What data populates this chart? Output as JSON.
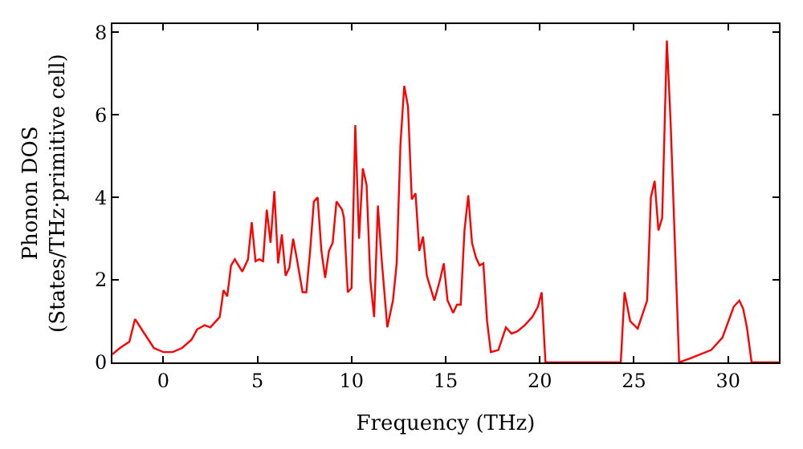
{
  "chart_data": {
    "type": "line",
    "xlabel": "Frequency (THz)",
    "ylabel": "Phonon DOS\n(States/THz·primitive cell)",
    "x": [
      -2.7,
      -2.3,
      -1.8,
      -1.5,
      -1.0,
      -0.5,
      0,
      0.5,
      1,
      1.5,
      1.8,
      2.2,
      2.5,
      3,
      3.2,
      3.4,
      3.6,
      3.8,
      4.2,
      4.5,
      4.7,
      4.9,
      5.1,
      5.3,
      5.5,
      5.7,
      5.9,
      6.1,
      6.3,
      6.5,
      6.7,
      6.9,
      7.1,
      7.4,
      7.6,
      7.8,
      8.0,
      8.2,
      8.4,
      8.6,
      8.8,
      9.0,
      9.2,
      9.5,
      9.6,
      9.8,
      10.0,
      10.2,
      10.4,
      10.6,
      10.8,
      11.0,
      11.2,
      11.4,
      11.6,
      11.9,
      12.2,
      12.4,
      12.6,
      12.8,
      13.0,
      13.2,
      13.4,
      13.6,
      13.8,
      14.0,
      14.2,
      14.4,
      14.7,
      14.9,
      15.1,
      15.4,
      15.6,
      15.8,
      16.0,
      16.2,
      16.4,
      16.6,
      16.8,
      17.0,
      17.2,
      17.4,
      17.8,
      18.2,
      18.5,
      18.8,
      19.2,
      19.6,
      19.9,
      20.1,
      20.3,
      24.3,
      24.5,
      24.8,
      25.2,
      25.7,
      25.9,
      26.1,
      26.3,
      26.5,
      26.75,
      26.95,
      27.4,
      28.0,
      29.1,
      29.7,
      30.3,
      30.6,
      30.8,
      31.0,
      31.25,
      32.7
    ],
    "series": [
      {
        "color": "#ff0000",
        "values": [
          0.2,
          0.35,
          0.5,
          1.05,
          0.7,
          0.35,
          0.25,
          0.25,
          0.35,
          0.55,
          0.8,
          0.9,
          0.85,
          1.1,
          1.75,
          1.6,
          2.35,
          2.5,
          2.2,
          2.5,
          3.4,
          2.45,
          2.5,
          2.45,
          3.7,
          2.9,
          4.15,
          2.4,
          3.1,
          2.1,
          2.3,
          3.0,
          2.5,
          1.7,
          1.7,
          2.7,
          3.9,
          4.0,
          2.7,
          2.05,
          2.7,
          2.9,
          3.9,
          3.7,
          3.5,
          1.7,
          1.8,
          5.75,
          3.0,
          4.7,
          4.3,
          2.0,
          1.1,
          3.8,
          2.5,
          0.85,
          1.5,
          2.4,
          5.3,
          6.7,
          6.2,
          3.95,
          4.1,
          2.7,
          3.05,
          2.1,
          1.8,
          1.5,
          2.0,
          2.4,
          1.5,
          1.2,
          1.4,
          1.4,
          3.2,
          4.05,
          2.9,
          2.55,
          2.35,
          2.4,
          1.0,
          0.25,
          0.3,
          0.85,
          0.7,
          0.75,
          0.9,
          1.1,
          1.35,
          1.7,
          0,
          0,
          1.7,
          1.0,
          0.82,
          1.5,
          4.0,
          4.4,
          3.2,
          3.5,
          7.8,
          5.8,
          0,
          0.1,
          0.3,
          0.6,
          1.35,
          1.5,
          1.3,
          0.85,
          0,
          0
        ]
      }
    ],
    "xlim": [
      -2.7,
      32.7
    ],
    "ylim": [
      0,
      8.2
    ],
    "xticks": [
      0,
      5,
      10,
      15,
      20,
      25,
      30
    ],
    "yticks": [
      0,
      2,
      4,
      6,
      8
    ],
    "marker": "none",
    "line_style": "solid"
  }
}
